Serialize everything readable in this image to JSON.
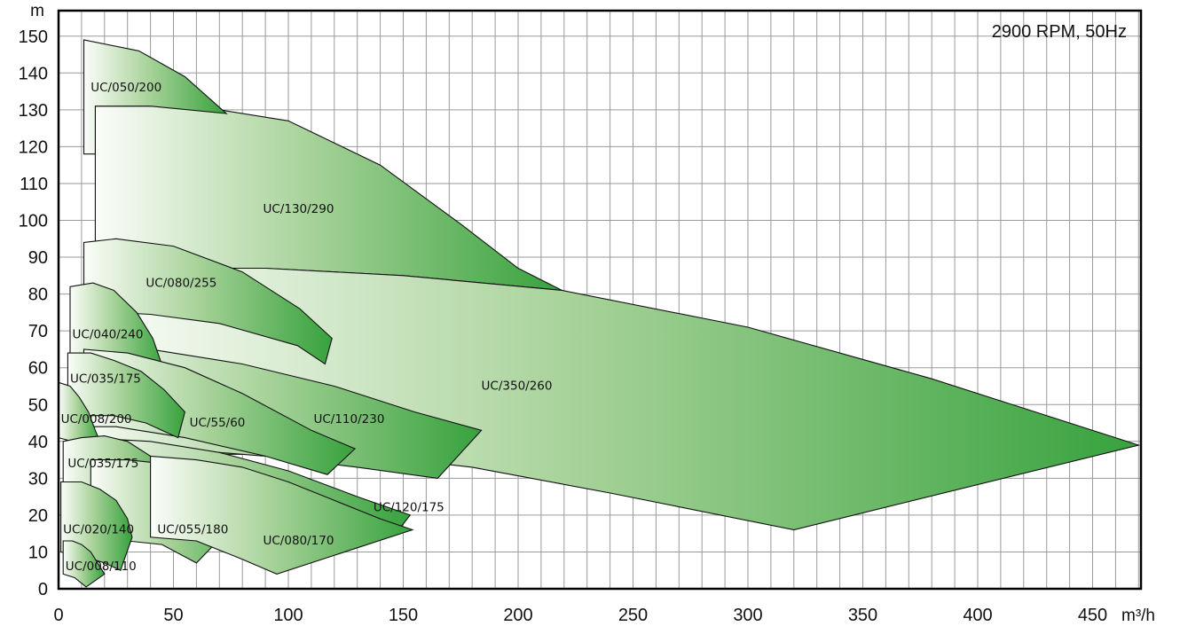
{
  "chart_data": {
    "type": "area",
    "title": "",
    "annotation": "2900 RPM, 50Hz",
    "xlabel": "m³/h",
    "ylabel": "m",
    "xlim": [
      0,
      480
    ],
    "ylim": [
      0,
      155
    ],
    "x_ticks": [
      0,
      50,
      100,
      150,
      200,
      250,
      300,
      350,
      400,
      450
    ],
    "y_ticks": [
      0,
      10,
      20,
      30,
      40,
      50,
      60,
      70,
      80,
      90,
      100,
      110,
      120,
      130,
      140,
      150
    ],
    "grid": true,
    "regions": [
      {
        "name": "UC/130/290",
        "outline": [
          [
            16,
            131
          ],
          [
            60,
            131
          ],
          [
            100,
            127
          ],
          [
            140,
            115
          ],
          [
            175,
            99
          ],
          [
            200,
            87
          ],
          [
            219,
            81
          ],
          [
            150,
            85
          ],
          [
            90,
            87
          ],
          [
            16,
            87
          ]
        ],
        "label_at": [
          89,
          102
        ]
      },
      {
        "name": "UC/050/200",
        "outline": [
          [
            11,
            149
          ],
          [
            35,
            146
          ],
          [
            55,
            139
          ],
          [
            73,
            129
          ],
          [
            40,
            131
          ],
          [
            16,
            131
          ],
          [
            16,
            118
          ],
          [
            11,
            118
          ]
        ],
        "label_at": [
          14,
          135
        ]
      },
      {
        "name": "UC/350/260",
        "outline": [
          [
            16,
            87
          ],
          [
            90,
            87
          ],
          [
            150,
            85
          ],
          [
            219,
            81
          ],
          [
            300,
            71
          ],
          [
            380,
            57
          ],
          [
            470,
            39
          ],
          [
            320,
            16
          ],
          [
            240,
            26
          ],
          [
            180,
            33
          ],
          [
            130,
            36.5
          ],
          [
            16,
            36.5
          ]
        ],
        "label_at": [
          184,
          54
        ]
      },
      {
        "name": "UC/080/255",
        "outline": [
          [
            11,
            94
          ],
          [
            25,
            95
          ],
          [
            50,
            93
          ],
          [
            80,
            86
          ],
          [
            105,
            76
          ],
          [
            119,
            68
          ],
          [
            116,
            61
          ],
          [
            104,
            66
          ],
          [
            70,
            72
          ],
          [
            40,
            74.5
          ],
          [
            25,
            75
          ],
          [
            11,
            75
          ]
        ],
        "label_at": [
          38,
          82
        ]
      },
      {
        "name": "UC/110/230",
        "outline": [
          [
            11,
            66.5
          ],
          [
            40,
            65
          ],
          [
            80,
            61
          ],
          [
            120,
            55
          ],
          [
            155,
            48
          ],
          [
            184,
            43
          ],
          [
            165,
            30
          ],
          [
            130,
            33
          ],
          [
            90,
            36
          ],
          [
            50,
            38
          ],
          [
            11,
            39
          ]
        ],
        "label_at": [
          111,
          45
        ]
      },
      {
        "name": "UC/040/240",
        "outline": [
          [
            5,
            82
          ],
          [
            15,
            83
          ],
          [
            24,
            81
          ],
          [
            34,
            75
          ],
          [
            41,
            68
          ],
          [
            46,
            59
          ],
          [
            44,
            53
          ],
          [
            36,
            55
          ],
          [
            28,
            57
          ],
          [
            20,
            58
          ],
          [
            5,
            58
          ]
        ],
        "label_at": [
          6,
          68
        ]
      },
      {
        "name": "UC/55/60",
        "outline": [
          [
            11,
            65
          ],
          [
            30,
            64
          ],
          [
            55,
            60
          ],
          [
            80,
            53
          ],
          [
            110,
            43
          ],
          [
            129,
            38
          ],
          [
            117,
            31
          ],
          [
            90,
            36
          ],
          [
            55,
            41
          ],
          [
            25,
            44
          ],
          [
            11,
            44
          ]
        ],
        "label_at": [
          57,
          44
        ]
      },
      {
        "name": "UC/035/175",
        "outline": [
          [
            4,
            64
          ],
          [
            14,
            64
          ],
          [
            24,
            62
          ],
          [
            36,
            59
          ],
          [
            46,
            54
          ],
          [
            55,
            48
          ],
          [
            52,
            41
          ],
          [
            38,
            45
          ],
          [
            24,
            47
          ],
          [
            4,
            47
          ]
        ],
        "label_at": [
          5,
          56
        ]
      },
      {
        "name": "UC/008/200",
        "outline": [
          [
            0,
            56
          ],
          [
            5,
            55
          ],
          [
            9,
            52
          ],
          [
            13,
            48
          ],
          [
            16,
            43
          ],
          [
            18,
            40
          ],
          [
            12,
            39
          ],
          [
            6,
            40
          ],
          [
            0,
            41
          ]
        ],
        "label_at": [
          1,
          45
        ]
      },
      {
        "name": "UC/120/175",
        "outline": [
          [
            11,
            41
          ],
          [
            40,
            40
          ],
          [
            70,
            37
          ],
          [
            100,
            32
          ],
          [
            130,
            25
          ],
          [
            153,
            20
          ],
          [
            148,
            16
          ],
          [
            120,
            21
          ],
          [
            90,
            26
          ],
          [
            60,
            30
          ],
          [
            30,
            33
          ],
          [
            11,
            33
          ]
        ],
        "label_at": [
          137,
          21
        ]
      },
      {
        "name": "UC/035/175",
        "outline": [
          [
            2,
            40
          ],
          [
            10,
            41
          ],
          [
            20,
            41.5
          ],
          [
            30,
            40
          ],
          [
            40,
            36
          ],
          [
            50,
            30
          ],
          [
            55,
            25
          ],
          [
            44,
            17
          ],
          [
            30,
            18
          ],
          [
            15,
            18
          ],
          [
            2,
            18
          ]
        ],
        "label_at": [
          4,
          33
        ]
      },
      {
        "name": "UC/055/180",
        "outline": [
          [
            14,
            35
          ],
          [
            30,
            35
          ],
          [
            45,
            34
          ],
          [
            60,
            31
          ],
          [
            75,
            27
          ],
          [
            88,
            25
          ],
          [
            60,
            7
          ],
          [
            45,
            12
          ],
          [
            30,
            13
          ],
          [
            14,
            13
          ]
        ],
        "label_at": [
          43,
          15
        ]
      },
      {
        "name": "UC/080/170",
        "outline": [
          [
            40,
            36
          ],
          [
            60,
            35
          ],
          [
            80,
            33
          ],
          [
            100,
            29
          ],
          [
            120,
            24
          ],
          [
            140,
            19
          ],
          [
            154,
            16
          ],
          [
            95,
            4
          ],
          [
            80,
            8
          ],
          [
            60,
            13
          ],
          [
            40,
            14
          ]
        ],
        "label_at": [
          89,
          12
        ]
      },
      {
        "name": "UC/020/140",
        "outline": [
          [
            1,
            29
          ],
          [
            10,
            29
          ],
          [
            18,
            27
          ],
          [
            25,
            24
          ],
          [
            30,
            19
          ],
          [
            32,
            14
          ],
          [
            27,
            5
          ],
          [
            20,
            7
          ],
          [
            10,
            9
          ],
          [
            1,
            10
          ]
        ],
        "label_at": [
          2,
          15
        ]
      },
      {
        "name": "UC/008/110",
        "outline": [
          [
            2,
            13
          ],
          [
            6,
            13
          ],
          [
            10,
            12
          ],
          [
            14,
            10
          ],
          [
            17,
            7
          ],
          [
            20,
            4
          ],
          [
            12,
            0.5
          ],
          [
            7,
            3
          ],
          [
            2,
            4
          ]
        ],
        "label_at": [
          3,
          5
        ]
      }
    ]
  }
}
